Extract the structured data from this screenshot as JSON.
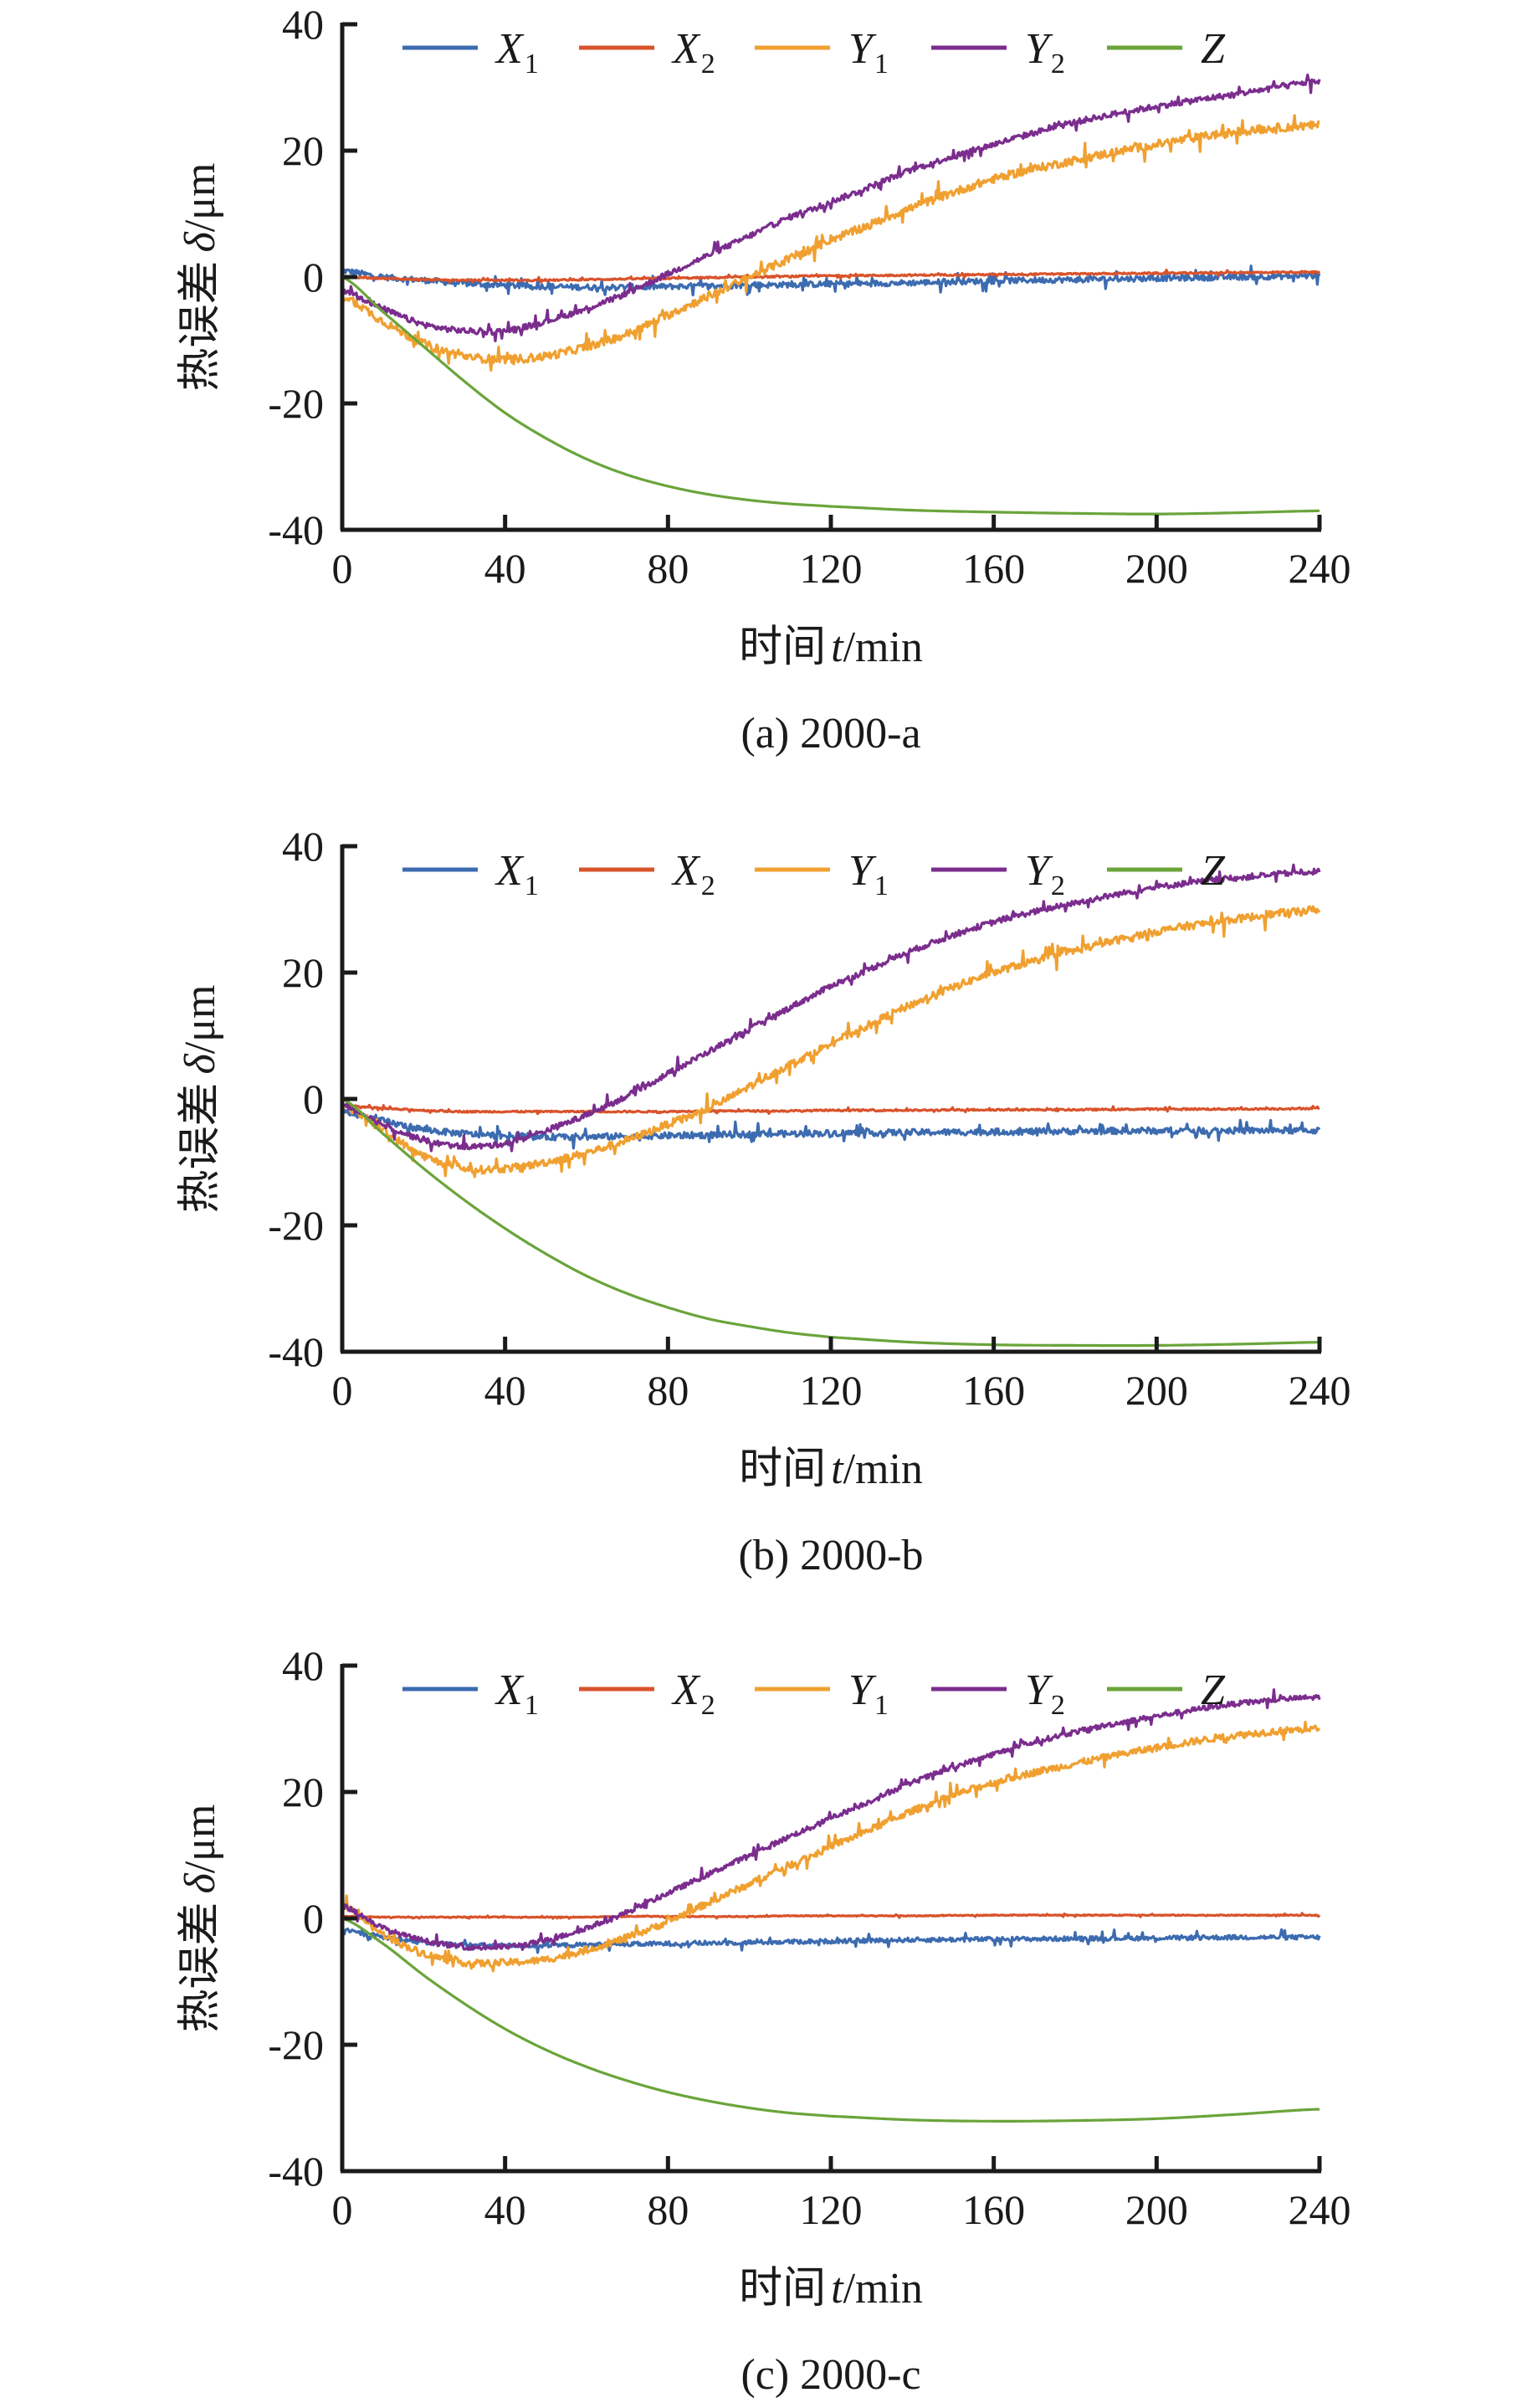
{
  "chart_data": [
    {
      "type": "line",
      "caption": "(a) 2000-a",
      "xlabel_cn": "时间",
      "xlabel_var": "t",
      "xlabel_unit": "/min",
      "ylabel_cn": "热误差",
      "ylabel_var": "δ",
      "ylabel_unit": "/μm",
      "xlim": [
        0,
        240
      ],
      "ylim": [
        -40,
        40
      ],
      "xticks": [
        "0",
        "40",
        "80",
        "120",
        "160",
        "200",
        "240"
      ],
      "yticks": [
        "40",
        "20",
        "0",
        "-20",
        "-40"
      ],
      "legend_position": "top",
      "grid": false,
      "x": [
        0,
        10,
        20,
        30,
        40,
        50,
        60,
        70,
        80,
        90,
        100,
        110,
        120,
        140,
        160,
        180,
        200,
        220,
        240
      ],
      "series": [
        {
          "name": "X",
          "sub": "1",
          "color": "#3c6bb0",
          "noise": 0.9,
          "values": [
            1,
            0,
            -0.5,
            -1,
            -1.3,
            -1.5,
            -1.6,
            -1.6,
            -1.5,
            -1.4,
            -1.3,
            -1.2,
            -1.1,
            -0.9,
            -0.6,
            -0.4,
            -0.2,
            0,
            0.2
          ]
        },
        {
          "name": "X",
          "sub": "2",
          "color": "#d9532b",
          "noise": 0.25,
          "values": [
            0,
            -0.2,
            -0.4,
            -0.5,
            -0.5,
            -0.5,
            -0.4,
            -0.3,
            -0.2,
            -0.1,
            0,
            0.1,
            0.2,
            0.3,
            0.4,
            0.5,
            0.6,
            0.7,
            0.8
          ]
        },
        {
          "name": "Y",
          "sub": "1",
          "color": "#f0a030",
          "noise": 1.3,
          "values": [
            -3,
            -7,
            -10.5,
            -12.5,
            -13,
            -12.5,
            -11,
            -9,
            -6,
            -3,
            0,
            3,
            6,
            11,
            15.5,
            18.5,
            21,
            23,
            24
          ]
        },
        {
          "name": "Y",
          "sub": "2",
          "color": "#7b2d8e",
          "noise": 0.9,
          "values": [
            -2,
            -5,
            -7.5,
            -8.5,
            -8.5,
            -7,
            -5,
            -2.5,
            0.5,
            3.5,
            6.5,
            9.5,
            12,
            17,
            21,
            24.5,
            27,
            29,
            31
          ]
        },
        {
          "name": "Z",
          "sub": "",
          "color": "#6aa43a",
          "noise": 0,
          "values": [
            0,
            -5.5,
            -11,
            -16.5,
            -21.5,
            -25.5,
            -28.8,
            -31.3,
            -33.1,
            -34.4,
            -35.3,
            -35.9,
            -36.3,
            -36.9,
            -37.2,
            -37.4,
            -37.5,
            -37.3,
            -37
          ]
        }
      ]
    },
    {
      "type": "line",
      "caption": "(b) 2000-b",
      "xlabel_cn": "时间",
      "xlabel_var": "t",
      "xlabel_unit": "/min",
      "ylabel_cn": "热误差",
      "ylabel_var": "δ",
      "ylabel_unit": "/μm",
      "xlim": [
        0,
        240
      ],
      "ylim": [
        -40,
        40
      ],
      "xticks": [
        "0",
        "40",
        "80",
        "120",
        "160",
        "200",
        "240"
      ],
      "yticks": [
        "40",
        "20",
        "0",
        "-20",
        "-40"
      ],
      "legend_position": "top",
      "grid": false,
      "x": [
        0,
        10,
        20,
        30,
        40,
        50,
        60,
        70,
        80,
        90,
        100,
        110,
        120,
        140,
        160,
        180,
        200,
        220,
        240
      ],
      "series": [
        {
          "name": "X",
          "sub": "1",
          "color": "#3c6bb0",
          "noise": 1.0,
          "values": [
            -2,
            -3.5,
            -4.8,
            -5.5,
            -5.8,
            -6,
            -6,
            -5.9,
            -5.8,
            -5.7,
            -5.6,
            -5.5,
            -5.4,
            -5.3,
            -5.2,
            -5.1,
            -5,
            -5,
            -5
          ]
        },
        {
          "name": "X",
          "sub": "2",
          "color": "#d9532b",
          "noise": 0.25,
          "values": [
            -1,
            -1.5,
            -1.8,
            -2,
            -2,
            -2,
            -2,
            -2,
            -2,
            -1.9,
            -1.9,
            -1.9,
            -1.8,
            -1.8,
            -1.7,
            -1.7,
            -1.6,
            -1.6,
            -1.5
          ]
        },
        {
          "name": "Y",
          "sub": "1",
          "color": "#f0a030",
          "noise": 1.2,
          "values": [
            -1,
            -5,
            -9,
            -11,
            -11,
            -10,
            -8.5,
            -6.5,
            -4,
            -1.5,
            2,
            5.5,
            9,
            15,
            20,
            23.5,
            26.5,
            28.5,
            30
          ]
        },
        {
          "name": "Y",
          "sub": "2",
          "color": "#7b2d8e",
          "noise": 0.9,
          "values": [
            -1,
            -4,
            -6.5,
            -7.5,
            -7,
            -5,
            -2.5,
            0.5,
            4,
            7.5,
            11,
            14.5,
            18,
            23.5,
            28,
            31,
            33.5,
            35,
            36
          ]
        },
        {
          "name": "Z",
          "sub": "",
          "color": "#6aa43a",
          "noise": 0,
          "values": [
            0,
            -5.5,
            -11,
            -16,
            -20.5,
            -24.5,
            -28,
            -30.8,
            -33,
            -34.8,
            -36,
            -37,
            -37.7,
            -38.5,
            -38.9,
            -39,
            -39,
            -38.8,
            -38.5
          ]
        }
      ]
    },
    {
      "type": "line",
      "caption": "(c) 2000-c",
      "xlabel_cn": "时间",
      "xlabel_var": "t",
      "xlabel_unit": "/min",
      "ylabel_cn": "热误差",
      "ylabel_var": "δ",
      "ylabel_unit": "/μm",
      "xlim": [
        0,
        240
      ],
      "ylim": [
        -40,
        40
      ],
      "xticks": [
        "0",
        "40",
        "80",
        "120",
        "160",
        "200",
        "240"
      ],
      "yticks": [
        "40",
        "20",
        "0",
        "-20",
        "-40"
      ],
      "legend_position": "top",
      "grid": false,
      "x": [
        0,
        10,
        20,
        30,
        40,
        50,
        60,
        70,
        80,
        90,
        100,
        110,
        120,
        140,
        160,
        180,
        200,
        220,
        240
      ],
      "series": [
        {
          "name": "X",
          "sub": "1",
          "color": "#3c6bb0",
          "noise": 0.7,
          "values": [
            -2,
            -3,
            -3.8,
            -4.2,
            -4.3,
            -4.3,
            -4.2,
            -4.1,
            -4,
            -3.9,
            -3.8,
            -3.7,
            -3.6,
            -3.4,
            -3.3,
            -3.2,
            -3.1,
            -3,
            -3
          ]
        },
        {
          "name": "X",
          "sub": "2",
          "color": "#d9532b",
          "noise": 0.15,
          "values": [
            0.3,
            0.2,
            0.2,
            0.2,
            0.2,
            0.2,
            0.2,
            0.3,
            0.3,
            0.3,
            0.3,
            0.4,
            0.4,
            0.4,
            0.5,
            0.5,
            0.5,
            0.5,
            0.5
          ]
        },
        {
          "name": "Y",
          "sub": "1",
          "color": "#f0a030",
          "noise": 1.1,
          "values": [
            2,
            -2.5,
            -5.5,
            -7,
            -7,
            -6.5,
            -5,
            -3,
            -0.5,
            2.5,
            5.5,
            8.5,
            11.5,
            17,
            21.5,
            24.5,
            27,
            29,
            30
          ]
        },
        {
          "name": "Y",
          "sub": "2",
          "color": "#7b2d8e",
          "noise": 0.8,
          "values": [
            2,
            -1.5,
            -3.5,
            -4.5,
            -4.5,
            -3.5,
            -1.5,
            1,
            4,
            7,
            10,
            13,
            16,
            21.5,
            26,
            29.5,
            32,
            34,
            35
          ]
        },
        {
          "name": "Z",
          "sub": "",
          "color": "#6aa43a",
          "noise": 0,
          "values": [
            0,
            -4,
            -9,
            -13.5,
            -17.5,
            -20.8,
            -23.5,
            -25.7,
            -27.5,
            -28.9,
            -30,
            -30.8,
            -31.3,
            -31.9,
            -32.1,
            -32,
            -31.7,
            -31,
            -30.2
          ]
        }
      ]
    }
  ]
}
